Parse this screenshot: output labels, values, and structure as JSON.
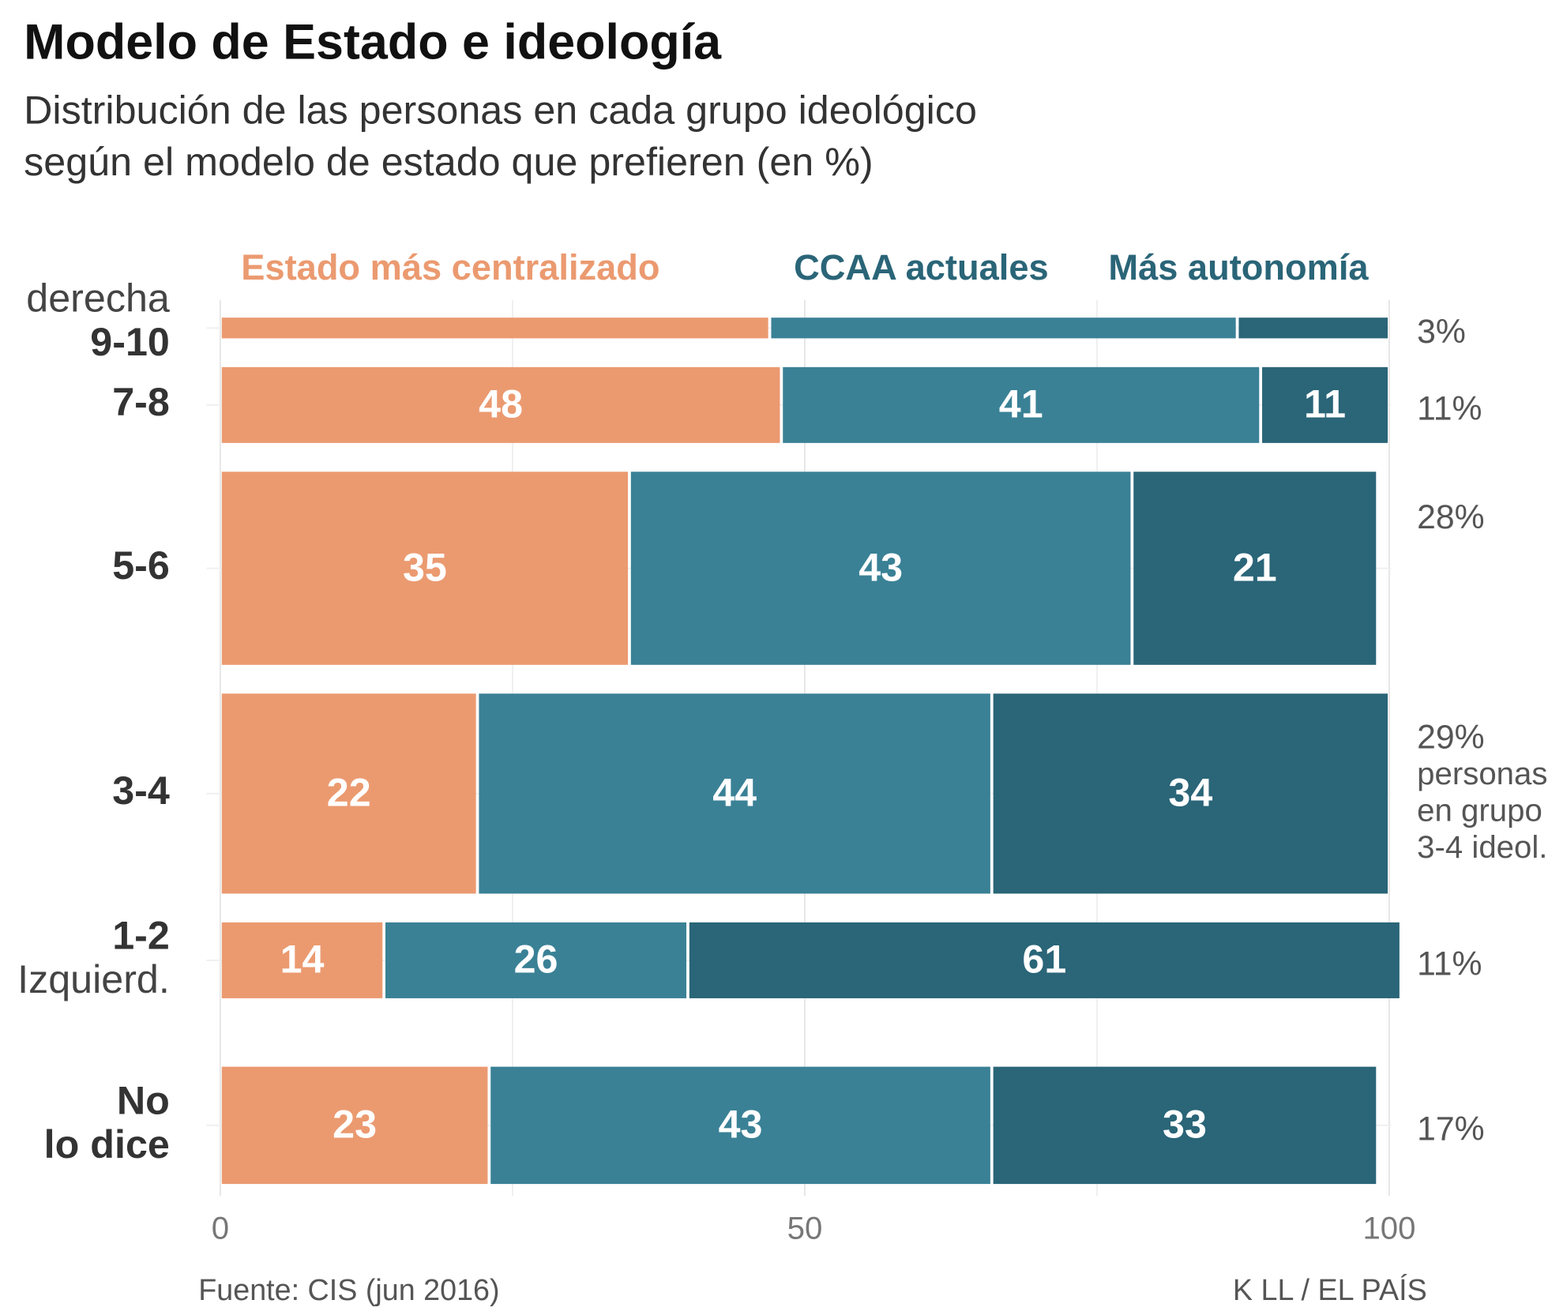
{
  "chart_data": {
    "type": "marimekko",
    "title": "Modelo de Estado e ideología",
    "subtitle": [
      "Distribución de las personas en cada grupo ideológico",
      "según el modelo de estado que prefieren (en %)"
    ],
    "categories": [
      [
        "derecha",
        "9-10"
      ],
      [
        "7-8"
      ],
      [
        "5-6"
      ],
      [
        "3-4"
      ],
      [
        "1-2",
        "Izquierd."
      ],
      [
        "No",
        "lo dice"
      ]
    ],
    "widths": [
      3,
      11,
      28,
      29,
      11,
      17
    ],
    "width_labels": [
      "3%",
      "11%",
      "28%",
      "29%",
      "11%",
      "17%"
    ],
    "width_note": [
      "personas",
      "en grupo",
      "3-4 ideol."
    ],
    "series": [
      {
        "name": "Estado más centralizado",
        "color": "#eb9a70",
        "values": [
          47,
          48,
          35,
          22,
          14,
          23
        ],
        "value_labels": [
          null,
          "48",
          "35",
          "22",
          "14",
          "23"
        ]
      },
      {
        "name": "CCAA actuales",
        "color": "#3a8196",
        "values": [
          40,
          41,
          43,
          44,
          26,
          43
        ],
        "value_labels": [
          null,
          "41",
          "43",
          "44",
          "26",
          "43"
        ]
      },
      {
        "name": "Más autonomía",
        "color": "#2a6578",
        "values": [
          13,
          11,
          21,
          34,
          61,
          33
        ],
        "value_labels": [
          null,
          "11",
          "21",
          "34",
          "61",
          "33"
        ]
      }
    ],
    "xlim": [
      0,
      100
    ],
    "xticks": [
      0,
      50,
      100
    ],
    "grid": true,
    "source": "Fuente: CIS (jun 2016)",
    "credit": "K LL / EL PAÍS"
  }
}
